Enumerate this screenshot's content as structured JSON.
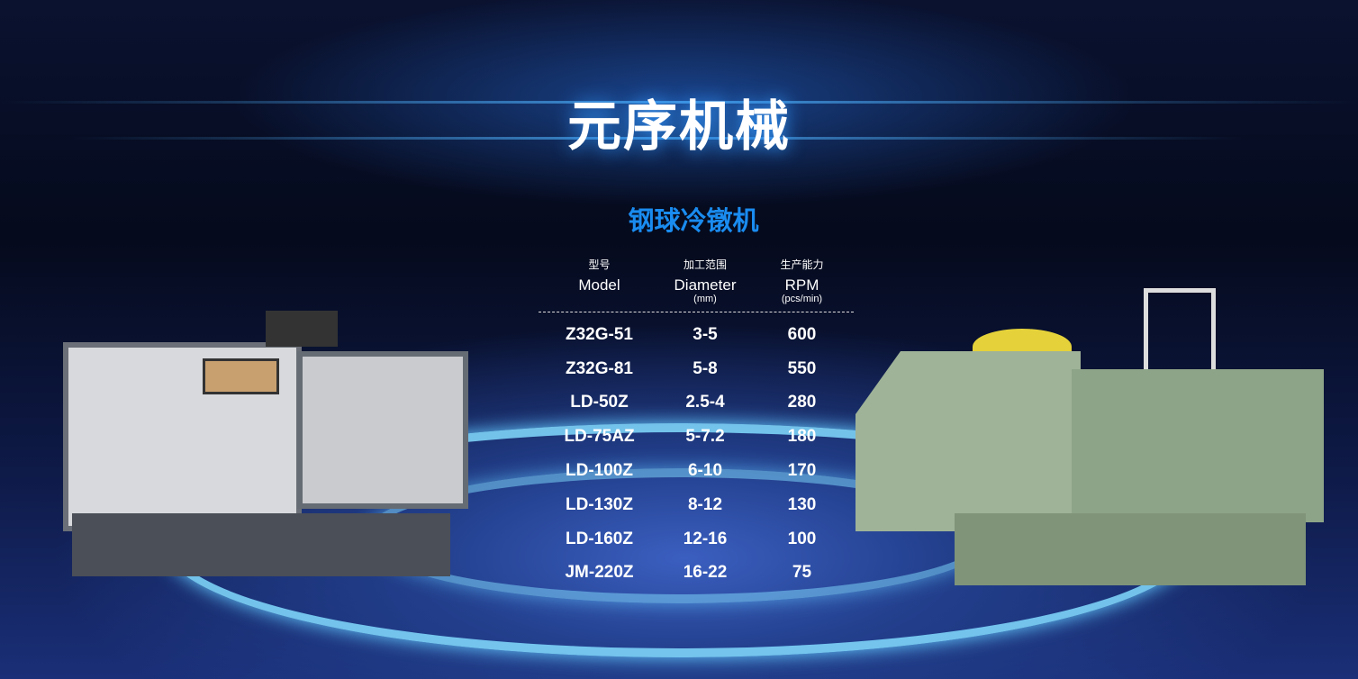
{
  "header": {
    "title": "元序机械"
  },
  "section": {
    "title": "钢球冷镦机"
  },
  "table": {
    "columns": [
      {
        "cn": "型号",
        "en": "Model",
        "unit": ""
      },
      {
        "cn": "加工范围",
        "en": "Diameter",
        "unit": "(mm)"
      },
      {
        "cn": "生产能力",
        "en": "RPM",
        "unit": "(pcs/min)"
      }
    ],
    "rows": [
      [
        "Z32G-51",
        "3-5",
        "600"
      ],
      [
        "Z32G-81",
        "5-8",
        "550"
      ],
      [
        "LD-50Z",
        "2.5-4",
        "280"
      ],
      [
        "LD-75AZ",
        "5-7.2",
        "180"
      ],
      [
        "LD-100Z",
        "6-10",
        "170"
      ],
      [
        "LD-130Z",
        "8-12",
        "130"
      ],
      [
        "LD-160Z",
        "12-16",
        "100"
      ],
      [
        "JM-220Z",
        "16-22",
        "75"
      ]
    ]
  },
  "colors": {
    "accent": "#1a8cf0",
    "background": "#050a1c"
  }
}
